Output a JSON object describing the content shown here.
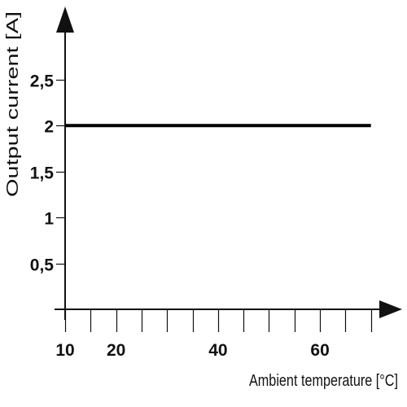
{
  "chart_data": {
    "type": "line",
    "title": "",
    "xlabel": "Ambient temperature [°C]",
    "ylabel": "Output current [A]",
    "xlim": [
      10,
      71
    ],
    "ylim": [
      0,
      2.8
    ],
    "x_ticks": [
      10,
      15,
      20,
      25,
      30,
      35,
      40,
      45,
      50,
      55,
      60,
      65,
      70
    ],
    "x_tick_labels": [
      {
        "value": 10,
        "label": "10"
      },
      {
        "value": 20,
        "label": "20"
      },
      {
        "value": 40,
        "label": "40"
      },
      {
        "value": 60,
        "label": "60"
      }
    ],
    "y_ticks": [
      {
        "value": 0.5,
        "label": "0,5"
      },
      {
        "value": 1,
        "label": "1"
      },
      {
        "value": 1.5,
        "label": "1,5"
      },
      {
        "value": 2,
        "label": "2"
      },
      {
        "value": 2.5,
        "label": "2,5"
      }
    ],
    "grid": false,
    "series": [
      {
        "x": [
          10,
          70
        ],
        "y": [
          2,
          2
        ],
        "color": "#000000"
      }
    ]
  }
}
